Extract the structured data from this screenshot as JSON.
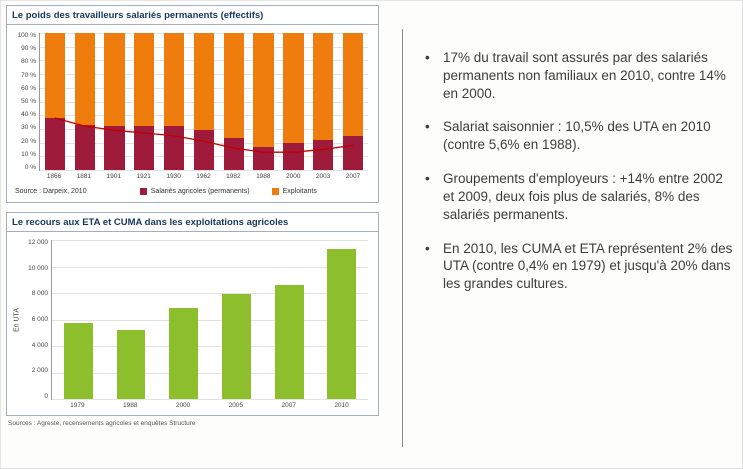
{
  "right_panel": {
    "bullets": [
      "17% du travail sont assurés par des salariés permanents non familiaux en 2010, contre 14% en 2000.",
      "Salariat saisonnier : 10,5% des UTA en 2010 (contre 5,6% en 1988).",
      "Groupements d'employeurs : +14% entre 2002 et 2009, deux fois plus de salariés, 8% des salariés permanents.",
      "En 2010, les CUMA et ETA représentent 2% des UTA (contre 0,4% en 1979) et jusqu'à 20% dans les grandes cultures."
    ]
  },
  "chart_data": [
    {
      "type": "bar",
      "subtype": "stacked-100-percent-with-line",
      "title": "Le poids des travailleurs salariés permanents (effectifs)",
      "categories": [
        "1866",
        "1881",
        "1901",
        "1921",
        "1930",
        "1962",
        "1982",
        "1988",
        "2000",
        "2003",
        "2007"
      ],
      "series": [
        {
          "name": "Salariés agricoles (permanents)",
          "color": "#9e1b3b",
          "values": [
            38,
            33,
            32,
            32,
            32,
            29,
            23,
            17,
            20,
            22,
            25
          ]
        },
        {
          "name": "Exploitants",
          "color": "#ee7d0e",
          "values": [
            62,
            67,
            68,
            68,
            68,
            71,
            77,
            83,
            80,
            78,
            75
          ]
        }
      ],
      "line": {
        "color": "#c00000",
        "values": [
          38,
          32,
          29,
          27,
          25,
          21,
          16,
          13,
          13,
          15,
          18
        ]
      },
      "y_ticks": [
        "100 %",
        "90 %",
        "80 %",
        "70 %",
        "60 %",
        "50 %",
        "40 %",
        "30 %",
        "20 %",
        "10 %",
        "0 %"
      ],
      "ylim": [
        0,
        100
      ],
      "grid": true,
      "legend_position": "bottom",
      "source": "Source : Darpeix, 2010"
    },
    {
      "type": "bar",
      "title": "Le recours aux ETA et CUMA dans les exploitations agricoles",
      "categories": [
        "1979",
        "1988",
        "2000",
        "2005",
        "2007",
        "2010"
      ],
      "values": [
        5700,
        5200,
        6900,
        7900,
        8600,
        11300
      ],
      "bar_color": "#8dbf2c",
      "ylabel": "En UTA",
      "y_ticks": [
        "12 000",
        "10 000",
        "8 000",
        "6 000",
        "4 000",
        "2 000",
        "0"
      ],
      "ylim": [
        0,
        12000
      ],
      "grid": true,
      "source": "Sources : Agreste, recensements agricoles et enquêtes Structure"
    }
  ]
}
